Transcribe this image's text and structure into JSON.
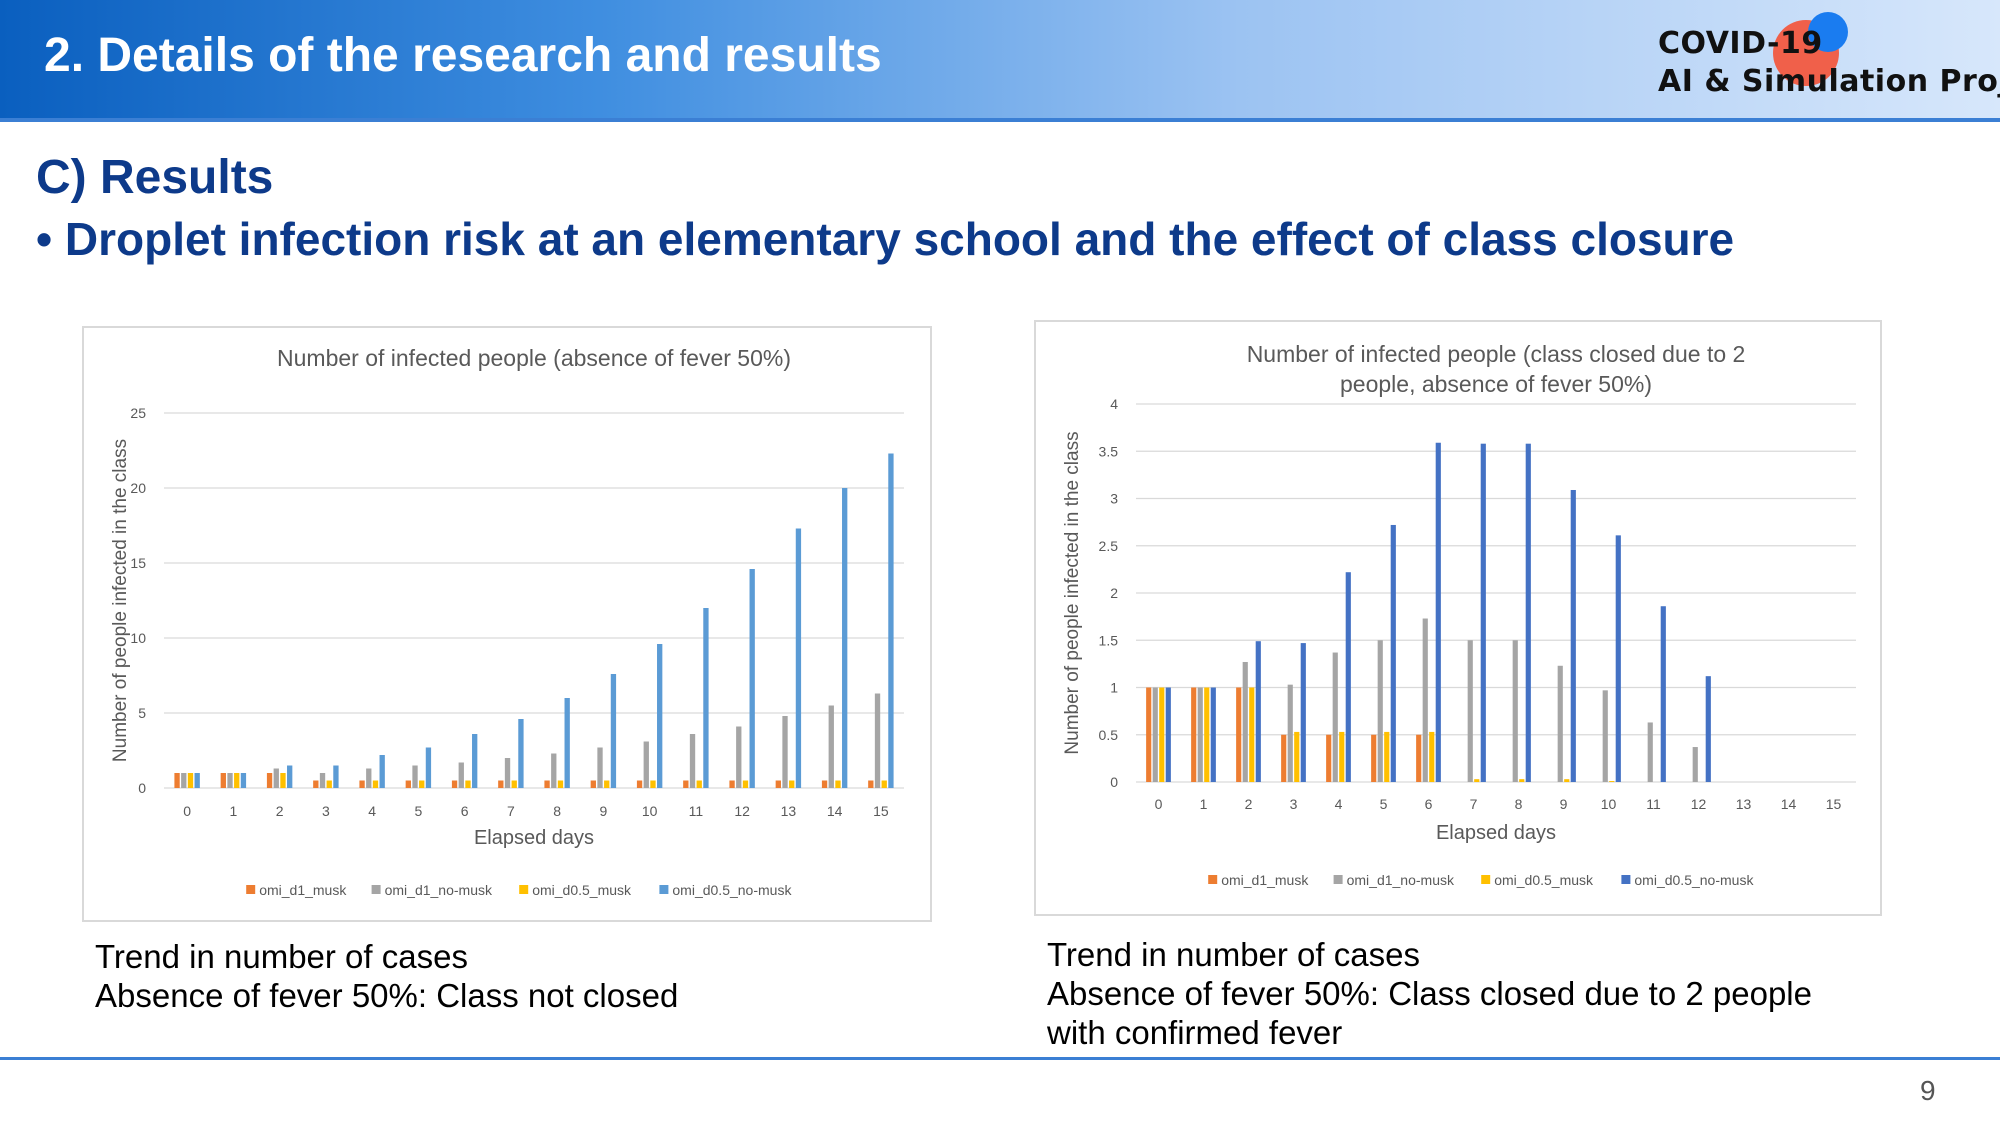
{
  "header": {
    "title": "2.  Details of the research and results",
    "logo_line1": "COVID-19",
    "logo_line2": "AI & Simulation Project"
  },
  "section": {
    "title": "C)  Results",
    "subtitle": "• Droplet infection risk at an elementary school and the effect of class closure"
  },
  "chart_data": [
    {
      "type": "bar",
      "title": "Number of infected people (absence of fever 50%)",
      "xlabel": "Elapsed days",
      "ylabel": "Number of people infected in the class",
      "ylim": [
        0,
        25
      ],
      "yticks": [
        "0",
        "5",
        "10",
        "15",
        "20",
        "25"
      ],
      "grid": true,
      "legend_position": "bottom",
      "categories": [
        "0",
        "1",
        "2",
        "3",
        "4",
        "5",
        "6",
        "7",
        "8",
        "9",
        "10",
        "11",
        "12",
        "13",
        "14",
        "15"
      ],
      "series": [
        {
          "name": "omi_d1_musk",
          "color": "#ED7D31",
          "values": [
            1,
            1,
            1,
            0.5,
            0.5,
            0.5,
            0.5,
            0.5,
            0.5,
            0.5,
            0.5,
            0.5,
            0.5,
            0.5,
            0.5,
            0.5
          ]
        },
        {
          "name": "omi_d1_no-musk",
          "color": "#A5A5A5",
          "values": [
            1,
            1,
            1.3,
            1,
            1.3,
            1.5,
            1.7,
            2,
            2.3,
            2.7,
            3.1,
            3.6,
            4.1,
            4.8,
            5.5,
            6.3
          ]
        },
        {
          "name": "omi_d0.5_musk",
          "color": "#FFC000",
          "values": [
            1,
            1,
            1,
            0.5,
            0.5,
            0.5,
            0.5,
            0.5,
            0.5,
            0.5,
            0.5,
            0.5,
            0.5,
            0.5,
            0.5,
            0.5
          ]
        },
        {
          "name": "omi_d0.5_no-musk",
          "color": "#5B9BD5",
          "values": [
            1,
            1,
            1.5,
            1.5,
            2.2,
            2.7,
            3.6,
            4.6,
            6,
            7.6,
            9.6,
            12,
            14.6,
            17.3,
            20,
            22.3
          ]
        }
      ]
    },
    {
      "type": "bar",
      "title": "Number of infected people (class closed due to 2 people, absence of fever 50%)",
      "title_lines": [
        "Number of infected people (class closed due to 2",
        "people, absence of fever 50%)"
      ],
      "xlabel": "Elapsed days",
      "ylabel": "Number of people infected in the class",
      "ylim": [
        0,
        4
      ],
      "yticks": [
        "0",
        "0.5",
        "1",
        "1.5",
        "2",
        "2.5",
        "3",
        "3.5",
        "4"
      ],
      "grid": true,
      "legend_position": "bottom",
      "categories": [
        "0",
        "1",
        "2",
        "3",
        "4",
        "5",
        "6",
        "7",
        "8",
        "9",
        "10",
        "11",
        "12",
        "13",
        "14",
        "15"
      ],
      "series": [
        {
          "name": "omi_d1_musk",
          "color": "#ED7D31",
          "values": [
            1,
            1,
            1,
            0.5,
            0.5,
            0.5,
            0.5,
            0,
            0,
            0,
            0,
            0,
            0,
            0,
            0,
            0
          ]
        },
        {
          "name": "omi_d1_no-musk",
          "color": "#A5A5A5",
          "values": [
            1,
            1,
            1.27,
            1.03,
            1.37,
            1.5,
            1.73,
            1.5,
            1.5,
            1.23,
            0.97,
            0.63,
            0.37,
            0,
            0,
            0
          ]
        },
        {
          "name": "omi_d0.5_musk",
          "color": "#FFC000",
          "values": [
            1,
            1,
            1,
            0.53,
            0.53,
            0.53,
            0.53,
            0.03,
            0.03,
            0.03,
            0.01,
            0,
            0,
            0,
            0,
            0
          ]
        },
        {
          "name": "omi_d0.5_no-musk",
          "color": "#4472C4",
          "values": [
            1,
            1,
            1.49,
            1.47,
            2.22,
            2.72,
            3.59,
            3.58,
            3.58,
            3.09,
            2.61,
            1.86,
            1.12,
            0,
            0,
            0
          ]
        }
      ]
    }
  ],
  "captions": {
    "left": [
      "Trend in number of cases",
      "Absence of fever 50%: Class not closed"
    ],
    "right": [
      "Trend in number of cases",
      "Absence of fever 50%: Class closed due to 2 people",
      "with confirmed fever"
    ]
  },
  "page_number": "9"
}
